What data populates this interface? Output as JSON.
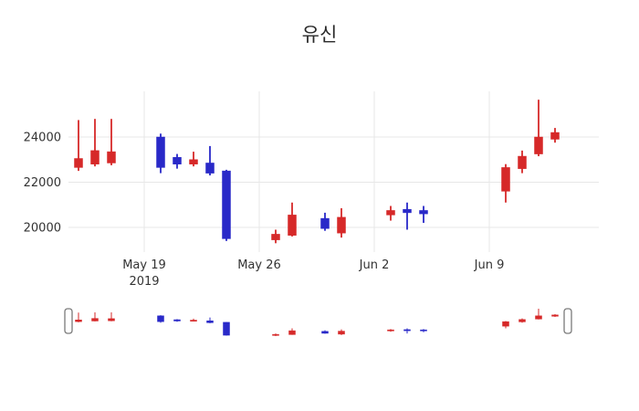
{
  "title": "유신",
  "chart_data": {
    "type": "candlestick",
    "title": "유신",
    "grid": true,
    "colors": {
      "increasing": "#d62929",
      "decreasing": "#2929c8",
      "grid": "#e7e7e7",
      "tick_text": "#333333"
    },
    "y_ticks": [
      20000,
      22000,
      24000
    ],
    "x_ticks": [
      {
        "label": "May 19",
        "sublabel": "2019",
        "date": "2019-05-19"
      },
      {
        "label": "May 26",
        "sublabel": "",
        "date": "2019-05-26"
      },
      {
        "label": "Jun 2",
        "sublabel": "",
        "date": "2019-06-02"
      },
      {
        "label": "Jun 9",
        "sublabel": "",
        "date": "2019-06-09"
      }
    ],
    "ylim": [
      18900,
      26000
    ],
    "legend": "none",
    "rangeslider": true,
    "candles": [
      {
        "date": "2019-05-15",
        "open": 22650,
        "high": 24750,
        "low": 22500,
        "close": 23050
      },
      {
        "date": "2019-05-16",
        "open": 22800,
        "high": 24800,
        "low": 22700,
        "close": 23400
      },
      {
        "date": "2019-05-17",
        "open": 22850,
        "high": 24800,
        "low": 22750,
        "close": 23350
      },
      {
        "date": "2019-05-20",
        "open": 24000,
        "high": 24150,
        "low": 22400,
        "close": 22650
      },
      {
        "date": "2019-05-21",
        "open": 23100,
        "high": 23250,
        "low": 22600,
        "close": 22800
      },
      {
        "date": "2019-05-22",
        "open": 22800,
        "high": 23350,
        "low": 22700,
        "close": 23000
      },
      {
        "date": "2019-05-23",
        "open": 22850,
        "high": 23600,
        "low": 22300,
        "close": 22400
      },
      {
        "date": "2019-05-24",
        "open": 22500,
        "high": 22550,
        "low": 19400,
        "close": 19500
      },
      {
        "date": "2019-05-27",
        "open": 19450,
        "high": 19900,
        "low": 19300,
        "close": 19700
      },
      {
        "date": "2019-05-28",
        "open": 19650,
        "high": 21100,
        "low": 19600,
        "close": 20550
      },
      {
        "date": "2019-05-30",
        "open": 20400,
        "high": 20650,
        "low": 19850,
        "close": 19950
      },
      {
        "date": "2019-05-31",
        "open": 19750,
        "high": 20850,
        "low": 19550,
        "close": 20450
      },
      {
        "date": "2019-06-03",
        "open": 20550,
        "high": 20950,
        "low": 20300,
        "close": 20750
      },
      {
        "date": "2019-06-04",
        "open": 20800,
        "high": 21100,
        "low": 19900,
        "close": 20650
      },
      {
        "date": "2019-06-05",
        "open": 20750,
        "high": 20950,
        "low": 20200,
        "close": 20600
      },
      {
        "date": "2019-06-10",
        "open": 21600,
        "high": 22800,
        "low": 21100,
        "close": 22650
      },
      {
        "date": "2019-06-11",
        "open": 22600,
        "high": 23400,
        "low": 22400,
        "close": 23150
      },
      {
        "date": "2019-06-12",
        "open": 23250,
        "high": 25650,
        "low": 23150,
        "close": 24000
      },
      {
        "date": "2019-06-13",
        "open": 23900,
        "high": 24400,
        "low": 23750,
        "close": 24200
      }
    ]
  }
}
